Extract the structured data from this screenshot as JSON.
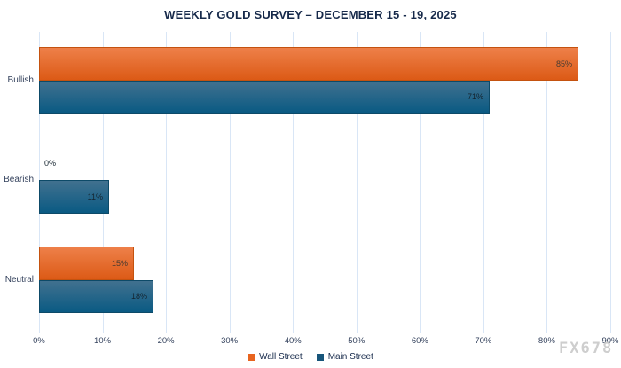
{
  "title": "WEEKLY GOLD SURVEY – DECEMBER 15 - 19, 2025",
  "watermark": "FX678",
  "chart_data": {
    "type": "bar",
    "orientation": "horizontal",
    "title": "WEEKLY GOLD SURVEY – DECEMBER 15 - 19, 2025",
    "categories": [
      "Bullish",
      "Bearish",
      "Neutral"
    ],
    "series": [
      {
        "name": "Wall Street",
        "values": [
          85,
          0,
          15
        ],
        "data_labels": [
          "85%",
          "0%",
          "15%"
        ],
        "color_top": "#ee8049",
        "color_bottom": "#dc5a16",
        "border_color": "#c4520f",
        "legend_color": "#e8641f"
      },
      {
        "name": "Main Street",
        "values": [
          71,
          11,
          18
        ],
        "data_labels": [
          "71%",
          "11%",
          "18%"
        ],
        "color_top": "#41718f",
        "color_bottom": "#0a5a83",
        "border_color": "#0d4a68",
        "legend_color": "#17557a"
      }
    ],
    "value_suffix": "%",
    "x_ticks": [
      "0%",
      "10%",
      "20%",
      "30%",
      "40%",
      "50%",
      "60%",
      "70%",
      "80%",
      "90%"
    ],
    "x_min": 0,
    "x_max": 90,
    "xlabel": "",
    "ylabel": "",
    "grid": "vertical-only",
    "legend_position": "bottom-center"
  },
  "colors": {
    "background": "#ffffff",
    "title_text": "#16294a",
    "axis_text": "#33415c",
    "value_label_on_orange": "#473a30",
    "value_label_on_blue": "#14242f",
    "gridline": "#d9e6f6",
    "watermark": "#c6c6c6"
  }
}
